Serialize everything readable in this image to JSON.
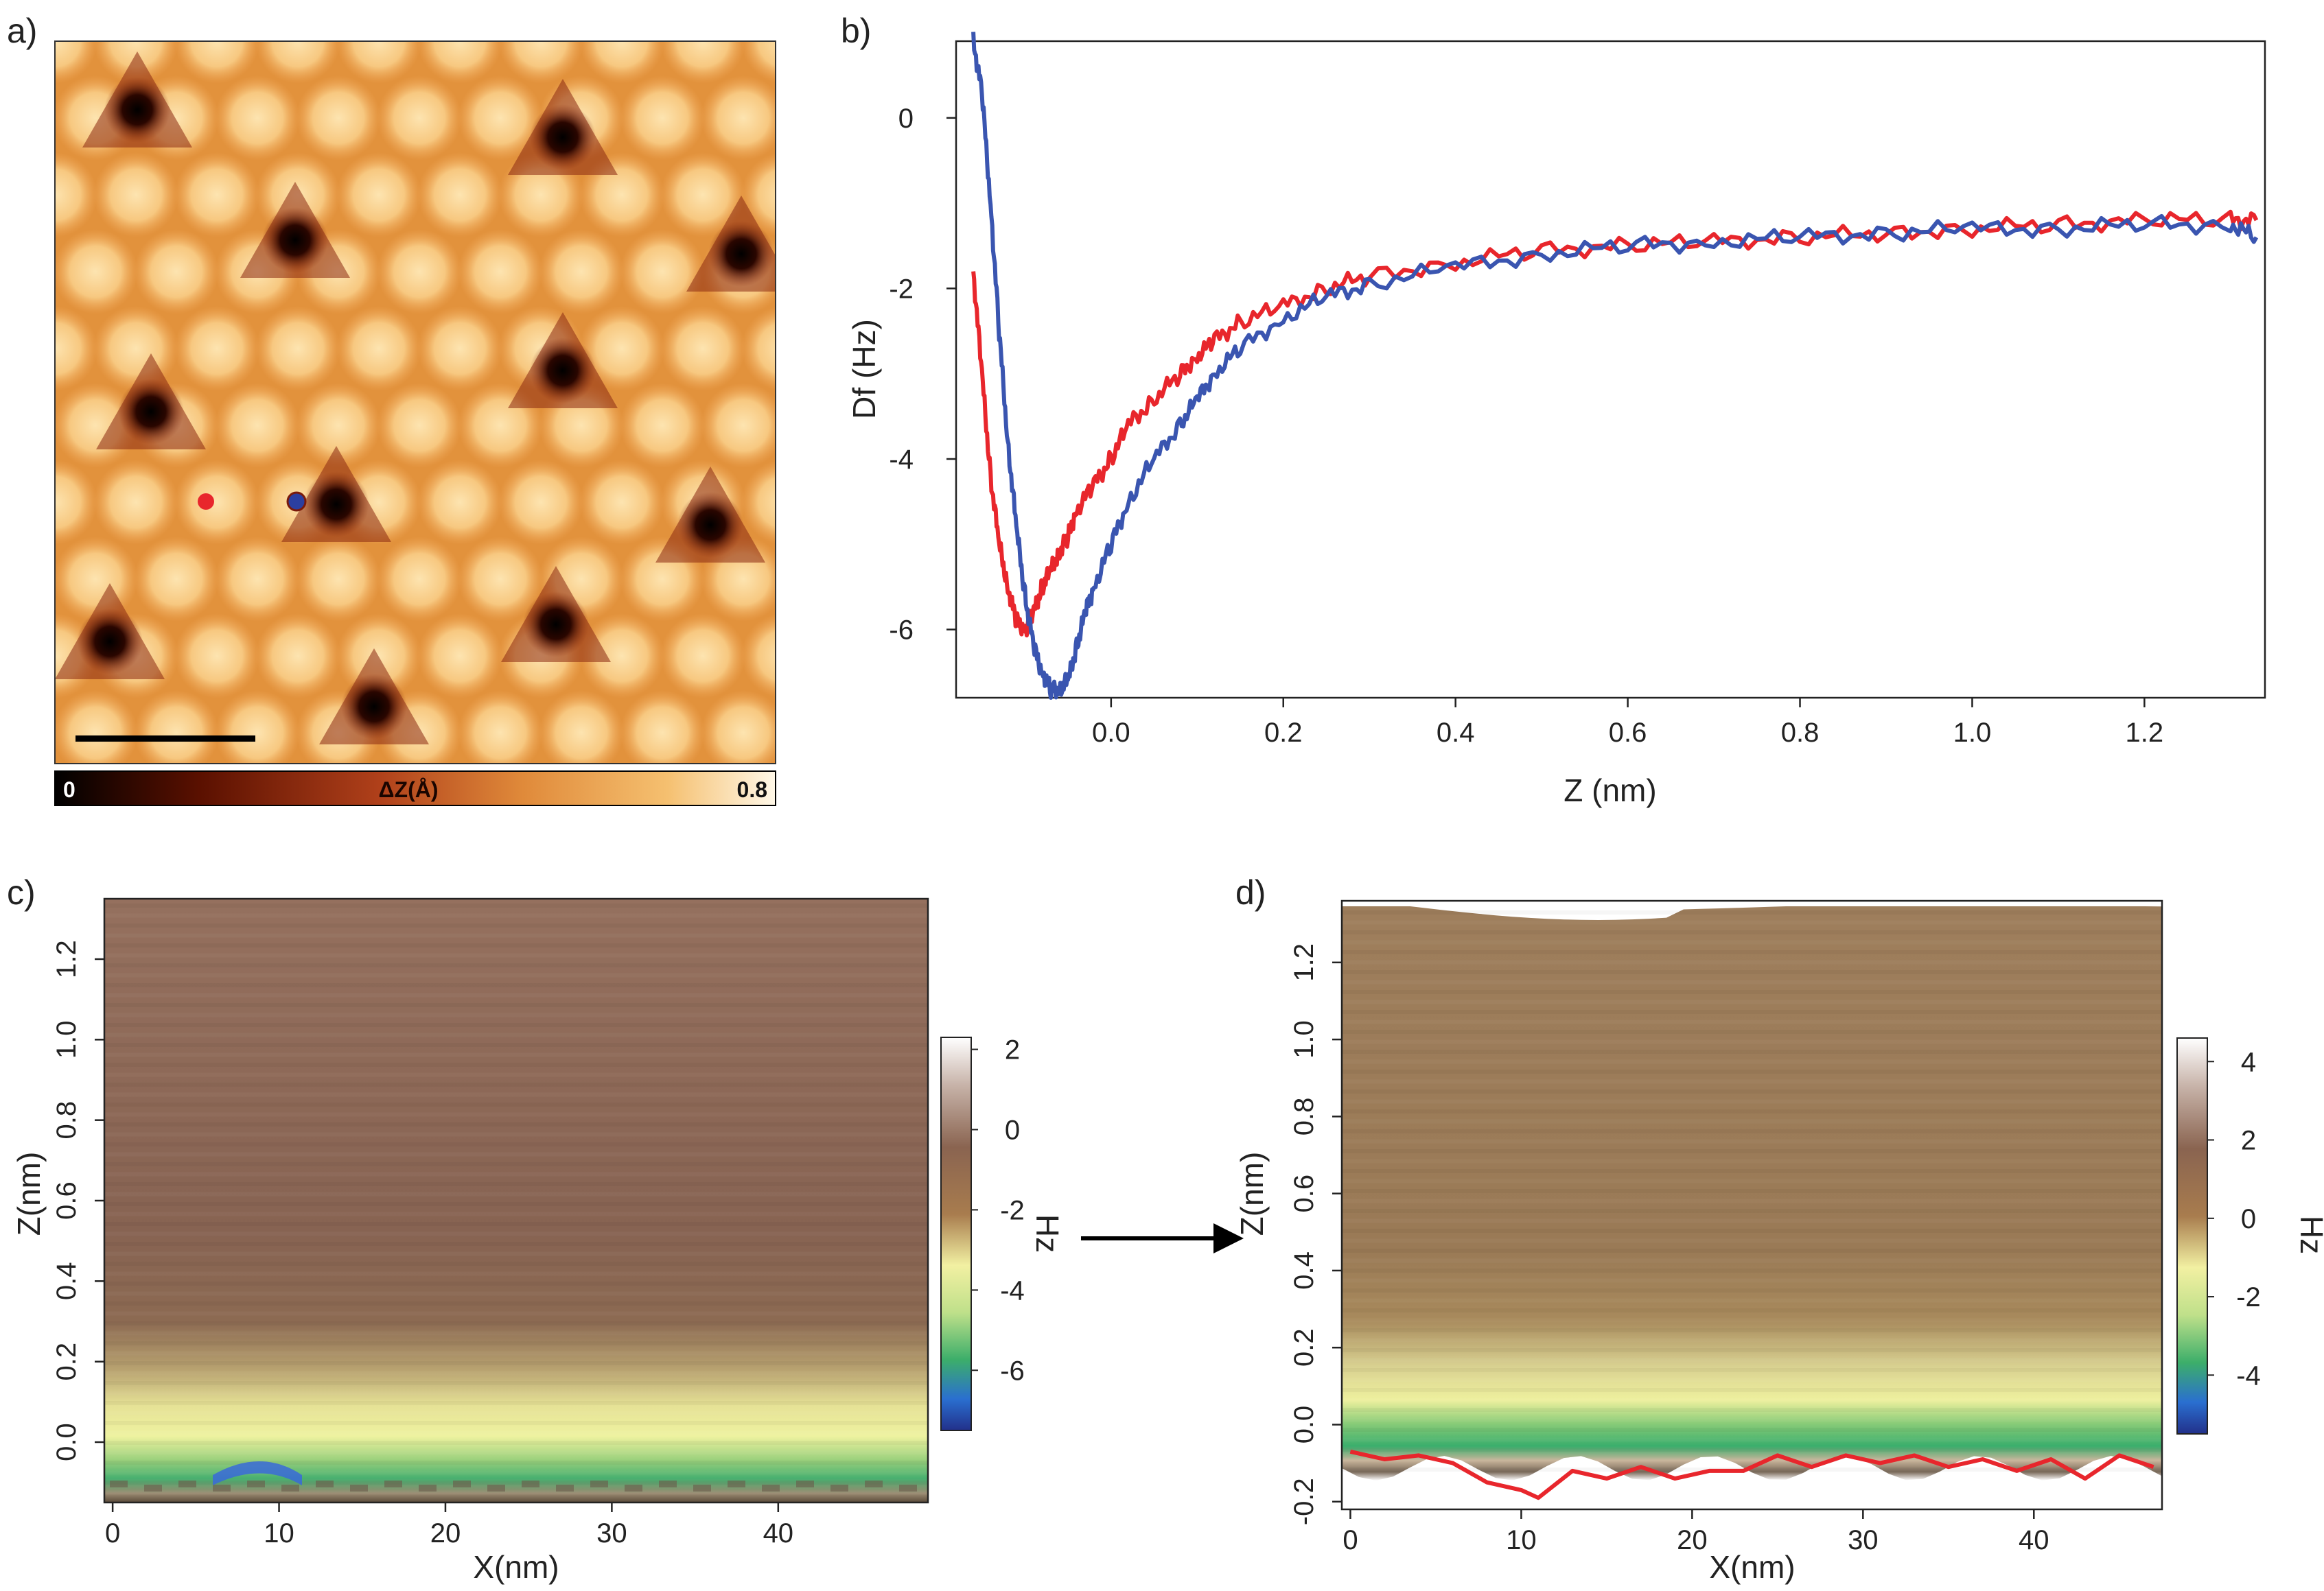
{
  "panels": {
    "a": {
      "label": "a)",
      "colorbar": {
        "min_label": "0",
        "title": "ΔZ(Å)",
        "max_label": "0.8",
        "colors": [
          "#000000",
          "#5a1000",
          "#b0401a",
          "#e08a3a",
          "#f5c070",
          "#fff8e8"
        ]
      },
      "markers": [
        {
          "name": "red-point",
          "color": "#e8262c"
        },
        {
          "name": "blue-point",
          "color": "#2b3fa0"
        }
      ]
    },
    "b": {
      "label": "b)",
      "xlabel": "Z (nm)",
      "ylabel": "Df (Hz)"
    },
    "c": {
      "label": "c)",
      "xlabel": "X(nm)",
      "ylabel": "Z(nm)",
      "colorbar_unit": "Hz"
    },
    "d": {
      "label": "d)",
      "xlabel": "X(nm)",
      "ylabel": "Z(nm)",
      "colorbar_unit": "Hz"
    }
  },
  "chart_data": [
    {
      "id": "a",
      "type": "heatmap",
      "description_of_values": "topography",
      "zlim": [
        0,
        0.8
      ],
      "zlabel": "ΔZ(Å)"
    },
    {
      "id": "b",
      "type": "line",
      "xlabel": "Z (nm)",
      "ylabel": "Df (Hz)",
      "xlim": [
        -0.18,
        1.34
      ],
      "ylim": [
        -6.8,
        0.9
      ],
      "xticks": [
        "0.0",
        "0.2",
        "0.4",
        "0.6",
        "0.8",
        "1.0",
        "1.2"
      ],
      "yticks": [
        "0",
        "-2",
        "-4",
        "-6"
      ],
      "series": [
        {
          "color": "#e8262c",
          "x": [
            -0.16,
            -0.15,
            -0.14,
            -0.13,
            -0.12,
            -0.11,
            -0.1,
            -0.09,
            -0.08,
            -0.07,
            -0.06,
            -0.05,
            -0.04,
            -0.02,
            0.0,
            0.02,
            0.05,
            0.08,
            0.1,
            0.12,
            0.15,
            0.2,
            0.25,
            0.3,
            0.4,
            0.5,
            0.6,
            0.7,
            0.8,
            0.9,
            1.0,
            1.1,
            1.2,
            1.3,
            1.33
          ],
          "y": [
            -1.8,
            -3.0,
            -4.2,
            -5.0,
            -5.5,
            -5.9,
            -6.0,
            -5.8,
            -5.5,
            -5.3,
            -5.1,
            -4.9,
            -4.6,
            -4.3,
            -4.0,
            -3.6,
            -3.3,
            -3.0,
            -2.8,
            -2.6,
            -2.4,
            -2.2,
            -2.0,
            -1.85,
            -1.7,
            -1.55,
            -1.5,
            -1.45,
            -1.4,
            -1.35,
            -1.3,
            -1.25,
            -1.2,
            -1.2,
            -1.2
          ]
        },
        {
          "color": "#3a55b0",
          "x": [
            -0.16,
            -0.15,
            -0.14,
            -0.13,
            -0.12,
            -0.11,
            -0.1,
            -0.09,
            -0.08,
            -0.07,
            -0.06,
            -0.05,
            -0.04,
            -0.03,
            -0.02,
            0.0,
            0.02,
            0.05,
            0.08,
            0.1,
            0.12,
            0.15,
            0.2,
            0.25,
            0.3,
            0.4,
            0.5,
            0.6,
            0.7,
            0.8,
            0.9,
            1.0,
            1.1,
            1.2,
            1.3,
            1.33
          ],
          "y": [
            0.9,
            0.3,
            -1.0,
            -2.5,
            -3.8,
            -4.8,
            -5.6,
            -6.2,
            -6.5,
            -6.7,
            -6.7,
            -6.6,
            -6.2,
            -5.8,
            -5.5,
            -5.0,
            -4.5,
            -4.0,
            -3.6,
            -3.3,
            -3.0,
            -2.7,
            -2.35,
            -2.1,
            -1.95,
            -1.75,
            -1.6,
            -1.5,
            -1.45,
            -1.4,
            -1.35,
            -1.3,
            -1.3,
            -1.25,
            -1.25,
            -1.4
          ]
        }
      ]
    },
    {
      "id": "c",
      "type": "heatmap",
      "xlabel": "X(nm)",
      "ylabel": "Z(nm)",
      "xlim": [
        -0.5,
        49
      ],
      "ylim": [
        -0.15,
        1.35
      ],
      "xticks": [
        "0",
        "10",
        "20",
        "30",
        "40"
      ],
      "yticks": [
        "0.0",
        "0.2",
        "0.4",
        "0.6",
        "0.8",
        "1.0",
        "1.2"
      ],
      "zlabel": "Hz",
      "zlim": [
        -7.5,
        2.3
      ],
      "zticks": [
        "2",
        "0",
        "-2",
        "-4",
        "-6"
      ]
    },
    {
      "id": "d",
      "type": "heatmap",
      "xlabel": "X(nm)",
      "ylabel": "Z(nm)",
      "xlim": [
        -0.5,
        47.5
      ],
      "ylim": [
        -0.22,
        1.36
      ],
      "xticks": [
        "0",
        "10",
        "20",
        "30",
        "40"
      ],
      "yticks": [
        "-0.2",
        "0.0",
        "0.2",
        "0.4",
        "0.6",
        "0.8",
        "1.0",
        "1.2"
      ],
      "zlabel": "Hz",
      "zlim": [
        -5.5,
        4.6
      ],
      "zticks": [
        "4",
        "2",
        "0",
        "-2",
        "-4"
      ],
      "overlay_line": {
        "color": "#e8262c",
        "x": [
          0,
          2,
          4,
          6,
          8,
          10,
          11,
          13,
          15,
          17,
          19,
          21,
          23,
          25,
          27,
          29,
          31,
          33,
          35,
          37,
          39,
          41,
          43,
          45,
          47
        ],
        "y": [
          -0.07,
          -0.09,
          -0.08,
          -0.1,
          -0.15,
          -0.17,
          -0.19,
          -0.12,
          -0.14,
          -0.11,
          -0.14,
          -0.12,
          -0.12,
          -0.08,
          -0.11,
          -0.08,
          -0.1,
          -0.08,
          -0.11,
          -0.09,
          -0.12,
          -0.09,
          -0.14,
          -0.08,
          -0.11
        ]
      }
    }
  ]
}
